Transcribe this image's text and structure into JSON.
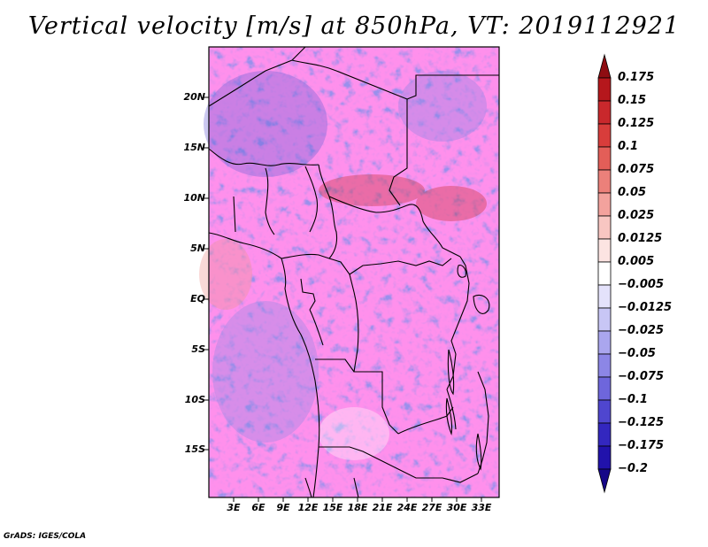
{
  "title": "Vertical velocity [m/s] at 850hPa, VT: 2019112921",
  "footer": "GrADS: IGES/COLA",
  "map": {
    "lat_labels": [
      "20N",
      "15N",
      "10N",
      "5N",
      "EQ",
      "5S",
      "10S",
      "15S"
    ],
    "lon_labels": [
      "3E",
      "6E",
      "9E",
      "12E",
      "15E",
      "18E",
      "21E",
      "24E",
      "27E",
      "30E",
      "33E"
    ]
  },
  "colorbar": {
    "labels": [
      "0.175",
      "0.15",
      "0.125",
      "0.1",
      "0.075",
      "0.05",
      "0.025",
      "0.0125",
      "0.005",
      "−0.005",
      "−0.0125",
      "−0.025",
      "−0.05",
      "−0.075",
      "−0.1",
      "−0.125",
      "−0.175",
      "−0.2"
    ],
    "colors": [
      "#8f0d12",
      "#b5171c",
      "#c9282c",
      "#d83d3b",
      "#e35e58",
      "#ec807a",
      "#f3a29d",
      "#f8c6c2",
      "#fce4e2",
      "#ffffff",
      "#e4e2fb",
      "#c8c6f5",
      "#aaa6ee",
      "#8c86e6",
      "#6e66dc",
      "#4f46cf",
      "#3327bf",
      "#2112ab",
      "#150788"
    ]
  },
  "chart_data": {
    "type": "heatmap",
    "title": "Vertical velocity [m/s] at 850hPa, VT: 2019112921",
    "variable": "Vertical velocity",
    "units": "m/s",
    "level": "850hPa",
    "valid_time": "2019112921",
    "x_range_deg": [
      0,
      35
    ],
    "y_range_deg": [
      -20,
      24
    ],
    "contour_levels": [
      -0.2,
      -0.175,
      -0.125,
      -0.1,
      -0.075,
      -0.05,
      -0.025,
      -0.0125,
      -0.005,
      0.005,
      0.0125,
      0.025,
      0.05,
      0.075,
      0.1,
      0.125,
      0.15,
      0.175
    ]
  }
}
